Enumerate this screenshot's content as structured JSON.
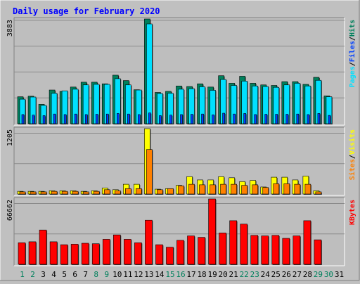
{
  "title": "Daily usage for February 2020",
  "colors": {
    "background": "#c0c0c0",
    "panel": "#bebebe",
    "hits": "#00805c",
    "files": "#0040ff",
    "pages": "#00e0ff",
    "visits": "#ffff00",
    "sites": "#ff8000",
    "kbytes": "#ff0000",
    "title": "#0000ff",
    "weekend_label": "#00805c",
    "weekday_label": "#000000"
  },
  "chart_data": {
    "type": "bar",
    "title": "Daily usage for February 2020",
    "categories": [
      "1",
      "2",
      "3",
      "4",
      "5",
      "6",
      "7",
      "8",
      "9",
      "10",
      "11",
      "12",
      "13",
      "14",
      "15",
      "16",
      "17",
      "18",
      "19",
      "20",
      "21",
      "22",
      "23",
      "24",
      "25",
      "26",
      "27",
      "28",
      "29",
      "30",
      "31"
    ],
    "weekend_days": [
      "1",
      "2",
      "8",
      "9",
      "15",
      "16",
      "22",
      "23",
      "29",
      "30"
    ],
    "panels": [
      {
        "name": "requests",
        "ymax_label": "3883",
        "ylim": [
          0,
          3883
        ],
        "legend": [
          "Pages",
          "Files",
          "Hits"
        ],
        "series": [
          {
            "name": "Hits",
            "values": [
              1000,
              1020,
              720,
              1250,
              1200,
              1360,
              1540,
              1540,
              1480,
              1800,
              1600,
              1260,
              3883,
              1160,
              1200,
              1400,
              1380,
              1480,
              1360,
              1780,
              1500,
              1760,
              1500,
              1440,
              1420,
              1560,
              1560,
              1460,
              1720,
              1030,
              0
            ]
          },
          {
            "name": "Pages",
            "values": [
              910,
              990,
              680,
              1130,
              1220,
              1280,
              1440,
              1460,
              1460,
              1670,
              1440,
              1250,
              3700,
              1120,
              1130,
              1280,
              1300,
              1370,
              1240,
              1640,
              1420,
              1580,
              1400,
              1380,
              1350,
              1440,
              1500,
              1400,
              1610,
              1000,
              0
            ]
          },
          {
            "name": "Files",
            "values": [
              340,
              320,
              300,
              360,
              340,
              360,
              340,
              350,
              360,
              380,
              360,
              340,
              400,
              300,
              320,
              340,
              350,
              360,
              330,
              390,
              360,
              380,
              340,
              350,
              350,
              350,
              360,
              340,
              380,
              310,
              0
            ]
          }
        ]
      },
      {
        "name": "visitors",
        "ymax_label": "1205",
        "ylim": [
          0,
          1205
        ],
        "legend": [
          "Sites",
          "Visits"
        ],
        "series": [
          {
            "name": "Visits",
            "values": [
              50,
              50,
              50,
              60,
              60,
              60,
              50,
              60,
              110,
              80,
              180,
              180,
              1205,
              90,
              100,
              160,
              320,
              260,
              260,
              320,
              300,
              230,
              250,
              130,
              310,
              310,
              260,
              330,
              60,
              0,
              0
            ]
          },
          {
            "name": "Sites",
            "values": [
              40,
              40,
              40,
              50,
              50,
              50,
              40,
              50,
              80,
              60,
              100,
              100,
              820,
              80,
              100,
              150,
              180,
              170,
              170,
              180,
              180,
              160,
              170,
              120,
              190,
              190,
              180,
              180,
              40,
              0,
              0
            ]
          }
        ]
      },
      {
        "name": "traffic",
        "ymax_label": "66662",
        "ylim": [
          0,
          66662
        ],
        "legend": [
          "KBytes"
        ],
        "series": [
          {
            "name": "KBytes",
            "values": [
              22000,
              23000,
              35000,
              23000,
              20000,
              20500,
              21500,
              21000,
              25500,
              30000,
              25500,
              22000,
              45000,
              20000,
              17500,
              24500,
              29000,
              27500,
              66662,
              32000,
              44500,
              41000,
              29500,
              29000,
              29500,
              26500,
              29000,
              44500,
              25000,
              0,
              0
            ]
          }
        ]
      }
    ]
  }
}
